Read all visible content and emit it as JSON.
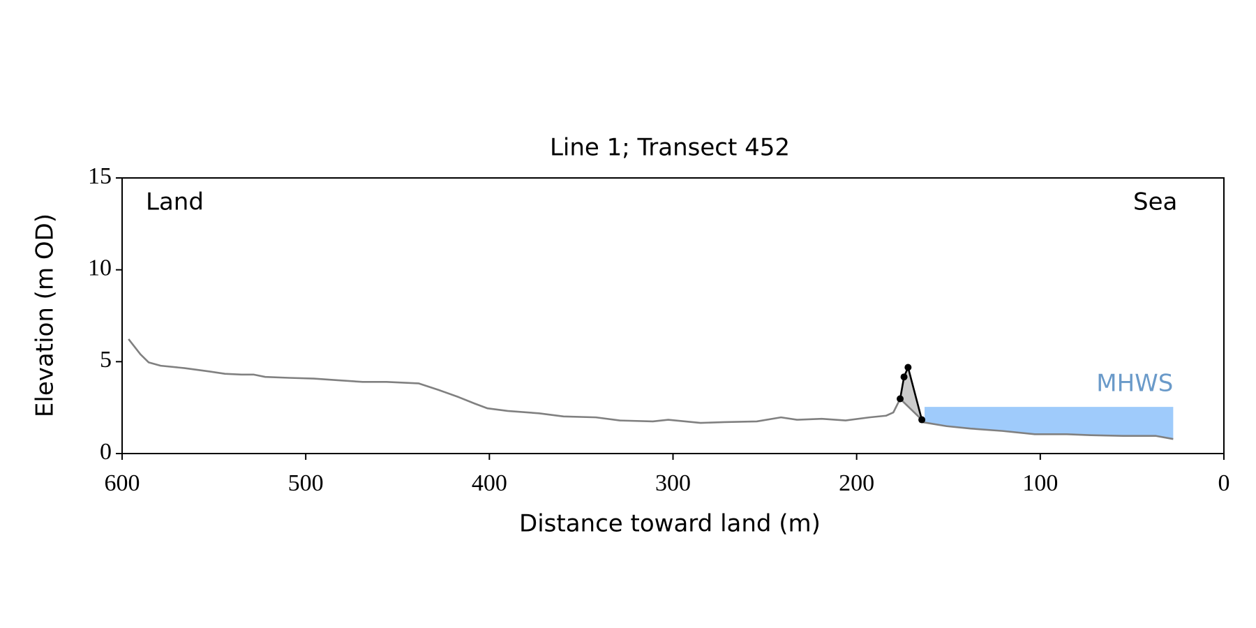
{
  "chart_data": {
    "type": "line",
    "title": "Line 1; Transect 452",
    "xlabel": "Distance toward land (m)",
    "ylabel": "Elevation (m OD)",
    "xlim": [
      600,
      0
    ],
    "ylim": [
      0,
      15
    ],
    "xticks": [
      600,
      500,
      400,
      300,
      200,
      100,
      0
    ],
    "yticks": [
      0,
      5,
      10,
      15
    ],
    "annotations": [
      {
        "text": "Land",
        "corner": "top-left"
      },
      {
        "text": "Sea",
        "corner": "top-right"
      }
    ],
    "profile": {
      "color": "#808080",
      "x": [
        596.5,
        590,
        585.5,
        579,
        566,
        552.6,
        544,
        535,
        528.5,
        522,
        509,
        495.6,
        482.5,
        469,
        456,
        438.6,
        427.6,
        416.7,
        408,
        401,
        390,
        373,
        359.6,
        342,
        329,
        311,
        302.6,
        285,
        272,
        254.4,
        241.2,
        232.5,
        219,
        206,
        193,
        184,
        180,
        176.3,
        164.5,
        164.3,
        151,
        138,
        120.5,
        103,
        85.5,
        72.4,
        55,
        37,
        27.6
      ],
      "y": [
        6.23,
        5.4,
        4.96,
        4.78,
        4.65,
        4.47,
        4.34,
        4.3,
        4.3,
        4.17,
        4.12,
        4.08,
        3.99,
        3.9,
        3.9,
        3.82,
        3.46,
        3.07,
        2.72,
        2.46,
        2.32,
        2.19,
        2.02,
        1.97,
        1.8,
        1.75,
        1.84,
        1.67,
        1.71,
        1.75,
        1.97,
        1.84,
        1.89,
        1.8,
        1.97,
        2.06,
        2.24,
        2.98,
        1.84,
        1.71,
        1.49,
        1.36,
        1.23,
        1.05,
        1.05,
        1.0,
        0.96,
        0.96,
        0.79
      ]
    },
    "dune": {
      "color": "#000000",
      "fill": "#cccccc",
      "x": [
        176.3,
        174.2,
        172,
        164.5
      ],
      "y": [
        2.98,
        4.17,
        4.69,
        1.84
      ]
    },
    "mhws": {
      "label": "MHWS",
      "color": "#9fcbfb",
      "label_color": "#6a9ac9",
      "level": 2.54,
      "x_range": [
        163,
        27.6
      ]
    }
  }
}
